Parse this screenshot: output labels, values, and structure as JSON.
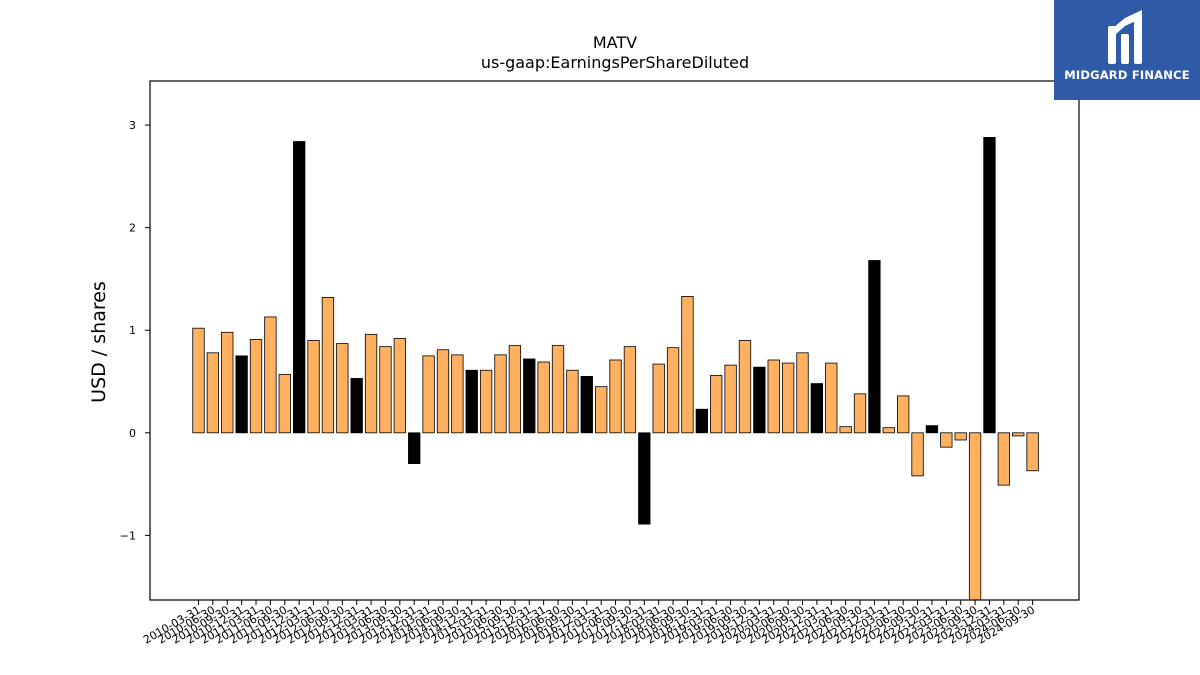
{
  "chart_data": {
    "type": "bar",
    "title": "MATV",
    "subtitle": "us-gaap:EarningsPerShareDiluted",
    "xlabel": "",
    "ylabel": "USD / shares",
    "ylim": [
      -1.63,
      3.43
    ],
    "yticks": [
      -1,
      0,
      1,
      2,
      3
    ],
    "grid": false,
    "colors": {
      "primary": "#ffb060",
      "highlight": "#000000",
      "edge": "#000000"
    },
    "categories": [
      "2010-03-31",
      "2010-06-30",
      "2010-09-30",
      "2010-12-31",
      "2011-03-31",
      "2011-06-30",
      "2011-09-30",
      "2011-12-31",
      "2012-03-31",
      "2012-06-30",
      "2012-09-30",
      "2012-12-31",
      "2013-03-31",
      "2013-06-30",
      "2013-09-30",
      "2013-12-31",
      "2014-03-31",
      "2014-06-30",
      "2014-09-30",
      "2014-12-31",
      "2015-03-31",
      "2015-06-30",
      "2015-09-30",
      "2015-12-31",
      "2016-03-31",
      "2016-06-30",
      "2016-09-30",
      "2016-12-31",
      "2017-03-31",
      "2017-06-30",
      "2017-09-30",
      "2017-12-31",
      "2018-03-31",
      "2018-06-30",
      "2018-09-30",
      "2018-12-31",
      "2019-03-31",
      "2019-06-30",
      "2019-09-30",
      "2019-12-31",
      "2020-03-31",
      "2020-06-30",
      "2020-09-30",
      "2020-12-31",
      "2021-03-31",
      "2021-06-30",
      "2021-09-30",
      "2021-12-31",
      "2022-03-31",
      "2022-06-30",
      "2022-09-30",
      "2022-12-31",
      "2023-03-31",
      "2023-06-30",
      "2023-09-30",
      "2023-12-31",
      "2024-03-31",
      "2024-06-30",
      "2024-09-30"
    ],
    "values": [
      1.02,
      0.78,
      0.98,
      0.75,
      0.91,
      1.13,
      0.57,
      2.84,
      0.9,
      1.32,
      0.87,
      0.53,
      0.96,
      0.84,
      0.92,
      -0.3,
      0.75,
      0.81,
      0.76,
      0.61,
      0.61,
      0.76,
      0.85,
      0.72,
      0.69,
      0.85,
      0.61,
      0.55,
      0.45,
      0.71,
      0.84,
      -0.89,
      0.67,
      0.83,
      1.33,
      0.23,
      0.56,
      0.66,
      0.9,
      0.64,
      0.71,
      0.68,
      0.78,
      0.48,
      0.68,
      0.06,
      0.38,
      1.68,
      0.05,
      0.36,
      -0.42,
      0.07,
      -0.14,
      -0.07,
      -1.63,
      2.88,
      -0.51,
      -0.03,
      -0.37
    ],
    "highlight": [
      false,
      false,
      false,
      true,
      false,
      false,
      false,
      true,
      false,
      false,
      false,
      true,
      false,
      false,
      false,
      true,
      false,
      false,
      false,
      true,
      false,
      false,
      false,
      true,
      false,
      false,
      false,
      true,
      false,
      false,
      false,
      true,
      false,
      false,
      false,
      true,
      false,
      false,
      false,
      true,
      false,
      false,
      false,
      true,
      false,
      false,
      false,
      true,
      false,
      false,
      false,
      true,
      false,
      false,
      false,
      true,
      false,
      false,
      false
    ]
  },
  "logo": {
    "text": "MIDGARD FINANCE"
  }
}
